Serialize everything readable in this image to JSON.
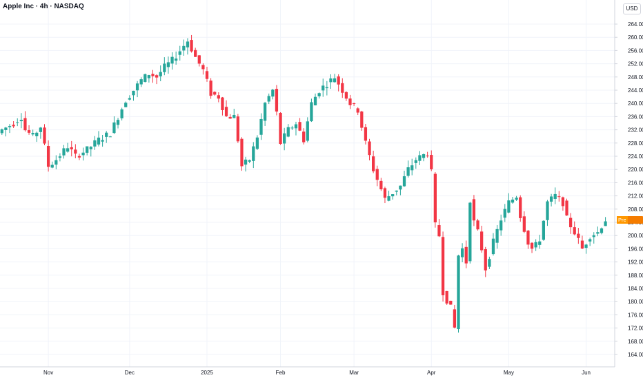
{
  "header": {
    "title": "Apple Inc · 4h · NASDAQ",
    "currency": "USD"
  },
  "price_tag": {
    "label": "Pre",
    "value": "204.79"
  },
  "colors": {
    "up": "#26a69a",
    "down": "#f23645",
    "grid": "#f0f3fa",
    "axis_text": "#131722",
    "tag": "#f57c00"
  },
  "chart_data": {
    "type": "candlestick",
    "title": "Apple Inc · 4h · NASDAQ",
    "ylim": [
      162,
      268
    ],
    "y_ticks": [
      "164.00",
      "168.00",
      "172.00",
      "176.00",
      "180.00",
      "184.00",
      "188.00",
      "192.00",
      "196.00",
      "200.00",
      "204.00",
      "208.00",
      "212.00",
      "216.00",
      "220.00",
      "224.00",
      "228.00",
      "232.00",
      "236.00",
      "240.00",
      "244.00",
      "248.00",
      "252.00",
      "256.00",
      "260.00",
      "264.00"
    ],
    "x_labels": [
      "Nov",
      "Dec",
      "2025",
      "Feb",
      "Mar",
      "Apr",
      "May",
      "Jun"
    ],
    "x_label_index": [
      12,
      33,
      53,
      72,
      91,
      111,
      131,
      151
    ],
    "n_slots": 158,
    "grid": true,
    "close_path": [
      [
        0,
        232
      ],
      [
        3,
        234
      ],
      [
        5,
        236
      ],
      [
        6,
        232
      ],
      [
        8,
        230
      ],
      [
        10,
        233
      ],
      [
        12,
        221
      ],
      [
        14,
        223
      ],
      [
        17,
        227
      ],
      [
        19,
        224
      ],
      [
        22,
        226
      ],
      [
        25,
        229
      ],
      [
        28,
        231
      ],
      [
        30,
        236
      ],
      [
        32,
        241
      ],
      [
        34,
        244
      ],
      [
        36,
        247
      ],
      [
        38,
        249
      ],
      [
        40,
        248
      ],
      [
        42,
        251
      ],
      [
        44,
        253
      ],
      [
        46,
        256
      ],
      [
        48,
        259
      ],
      [
        50,
        254
      ],
      [
        52,
        250
      ],
      [
        54,
        243
      ],
      [
        56,
        242
      ],
      [
        58,
        236
      ],
      [
        60,
        236
      ],
      [
        61,
        229
      ],
      [
        62,
        221
      ],
      [
        64,
        223
      ],
      [
        66,
        230
      ],
      [
        68,
        240
      ],
      [
        70,
        244
      ],
      [
        71,
        237
      ],
      [
        72,
        228
      ],
      [
        74,
        232
      ],
      [
        76,
        234
      ],
      [
        78,
        229
      ],
      [
        80,
        240
      ],
      [
        82,
        244
      ],
      [
        84,
        246
      ],
      [
        86,
        248
      ],
      [
        88,
        244
      ],
      [
        90,
        240
      ],
      [
        92,
        238
      ],
      [
        94,
        228
      ],
      [
        96,
        220
      ],
      [
        98,
        214
      ],
      [
        99,
        211
      ],
      [
        101,
        213
      ],
      [
        103,
        215
      ],
      [
        105,
        220
      ],
      [
        107,
        223
      ],
      [
        110,
        225
      ],
      [
        111,
        219
      ],
      [
        112,
        203
      ],
      [
        113,
        200
      ],
      [
        114,
        183
      ],
      [
        116,
        178
      ],
      [
        117,
        172
      ],
      [
        118,
        194
      ],
      [
        119,
        196
      ],
      [
        120,
        192
      ],
      [
        121,
        211
      ],
      [
        122,
        204
      ],
      [
        123,
        201
      ],
      [
        124,
        196
      ],
      [
        125,
        190
      ],
      [
        127,
        198
      ],
      [
        129,
        205
      ],
      [
        131,
        210
      ],
      [
        133,
        212
      ],
      [
        134,
        206
      ],
      [
        135,
        202
      ],
      [
        136,
        198
      ],
      [
        137,
        196
      ],
      [
        138,
        197
      ],
      [
        139,
        199
      ],
      [
        141,
        210
      ],
      [
        143,
        212
      ],
      [
        145,
        210
      ],
      [
        146,
        205
      ],
      [
        148,
        201
      ],
      [
        150,
        196
      ],
      [
        152,
        200
      ],
      [
        154,
        201
      ],
      [
        155,
        203
      ],
      [
        156,
        204.8
      ]
    ]
  }
}
